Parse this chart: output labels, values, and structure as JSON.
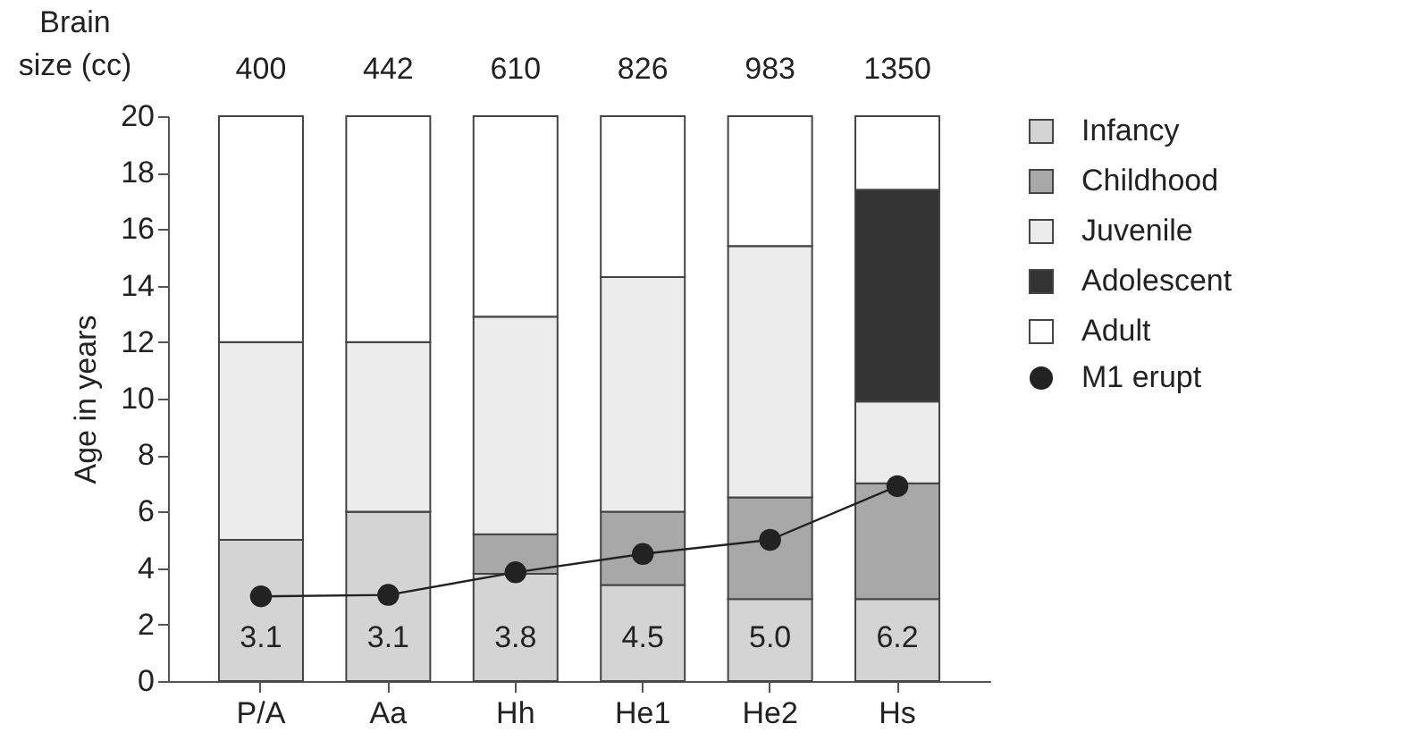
{
  "chart_data": {
    "type": "bar",
    "stacked": true,
    "ylabel": "Age in years",
    "categories": [
      "P/A",
      "Aa",
      "Hh",
      "He1",
      "He2",
      "Hs"
    ],
    "series": [
      {
        "name": "Infancy",
        "color": "#d4d4d4",
        "values": [
          5,
          6,
          3.8,
          3.4,
          2.9,
          2.9
        ]
      },
      {
        "name": "Childhood",
        "color": "#a8a8a8",
        "values": [
          0,
          0,
          1.4,
          2.6,
          3.6,
          4.1
        ]
      },
      {
        "name": "Juvenile",
        "color": "#ececec",
        "values": [
          7,
          6,
          7.7,
          8.3,
          8.9,
          2.9
        ]
      },
      {
        "name": "Adolescent",
        "color": "#333333",
        "values": [
          0,
          0,
          0,
          0,
          0,
          7.5
        ]
      },
      {
        "name": "Adult",
        "color": "#ffffff",
        "values": [
          8,
          8,
          7.1,
          5.7,
          4.6,
          2.6
        ]
      },
      {
        "name": "M1 erupt",
        "type": "line",
        "color": "#222222",
        "values": [
          3.0,
          3.05,
          3.85,
          4.5,
          5.0,
          6.9
        ]
      }
    ],
    "ylim": [
      0,
      20
    ],
    "yticks": [
      0,
      2,
      4,
      6,
      8,
      10,
      12,
      14,
      16,
      18,
      20
    ],
    "legend": "right",
    "marker": "circle",
    "line_style": "solid",
    "annotations": [
      "Brain size (cc)",
      "400",
      "442",
      "610",
      "826",
      "983",
      "1350",
      "3.1",
      "3.1",
      "3.8",
      "4.5",
      "5.0",
      "6.2"
    ]
  }
}
